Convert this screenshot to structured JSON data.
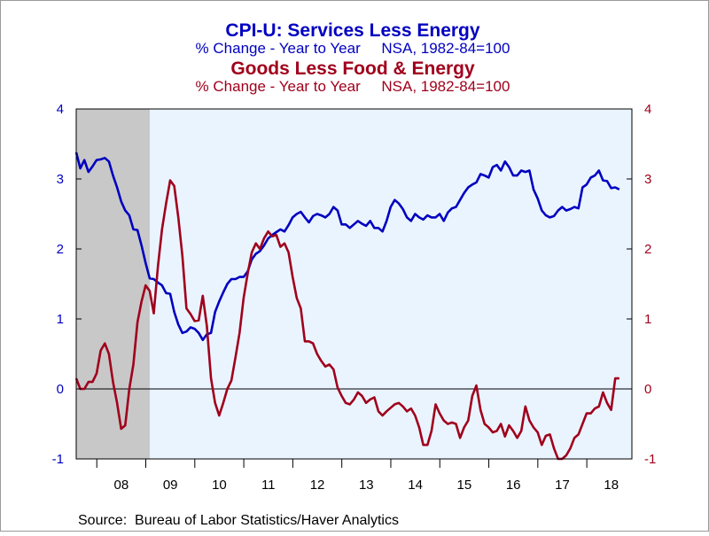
{
  "colors": {
    "series1": "#0000c0",
    "series2": "#a0001c",
    "plot_bg": "#eaf4ff",
    "recession": "#c8c8c8",
    "axis": "#000000"
  },
  "source": "Source:  Bureau of Labor Statistics/Haver Analytics",
  "chart_data": {
    "type": "line",
    "title": "CPI-U: Services Less Energy",
    "subtitle": "% Change - Year to Year     NSA, 1982-84=100",
    "title2": "Goods Less Food & Energy",
    "subtitle2": "% Change - Year to Year     NSA, 1982-84=100",
    "xlim": [
      2007.58,
      2018.92
    ],
    "ylim": [
      -1,
      4
    ],
    "y2lim": [
      -1,
      4
    ],
    "yticks": [
      "4",
      "3",
      "2",
      "1",
      "0",
      "-1"
    ],
    "y2ticks": [
      "4",
      "3",
      "2",
      "1",
      "0",
      "-1"
    ],
    "xticks": [
      "08",
      "09",
      "10",
      "11",
      "12",
      "13",
      "14",
      "15",
      "16",
      "17",
      "18"
    ],
    "zero_line": true,
    "shaded_regions": [
      {
        "start": 2007.58,
        "end": 2009.08
      }
    ],
    "series": [
      {
        "axis": "left",
        "start": 2007.58,
        "step": 0.0833333,
        "values": [
          3.38,
          3.15,
          3.27,
          3.1,
          3.18,
          3.27,
          3.28,
          3.3,
          3.25,
          3.05,
          2.88,
          2.68,
          2.55,
          2.48,
          2.28,
          2.27,
          2.05,
          1.8,
          1.58,
          1.57,
          1.52,
          1.48,
          1.37,
          1.36,
          1.1,
          0.92,
          0.8,
          0.82,
          0.88,
          0.86,
          0.8,
          0.7,
          0.78,
          0.8,
          1.1,
          1.25,
          1.38,
          1.5,
          1.57,
          1.57,
          1.6,
          1.6,
          1.68,
          1.85,
          1.93,
          1.97,
          2.05,
          2.15,
          2.2,
          2.24,
          2.28,
          2.25,
          2.34,
          2.45,
          2.5,
          2.53,
          2.45,
          2.38,
          2.47,
          2.5,
          2.48,
          2.45,
          2.5,
          2.6,
          2.55,
          2.35,
          2.35,
          2.3,
          2.35,
          2.4,
          2.36,
          2.33,
          2.4,
          2.3,
          2.3,
          2.25,
          2.4,
          2.6,
          2.7,
          2.65,
          2.57,
          2.45,
          2.4,
          2.5,
          2.45,
          2.42,
          2.48,
          2.45,
          2.45,
          2.5,
          2.4,
          2.52,
          2.58,
          2.6,
          2.7,
          2.8,
          2.88,
          2.92,
          2.95,
          3.07,
          3.05,
          3.02,
          3.17,
          3.2,
          3.12,
          3.25,
          3.17,
          3.05,
          3.05,
          3.12,
          3.1,
          3.12,
          2.85,
          2.72,
          2.55,
          2.48,
          2.45,
          2.47,
          2.55,
          2.6,
          2.55,
          2.57,
          2.6,
          2.58,
          2.88,
          2.92,
          3.02,
          3.05,
          3.12,
          2.98,
          2.97,
          2.87,
          2.88,
          2.85
        ]
      },
      {
        "axis": "right",
        "start": 2007.58,
        "step": 0.0833333,
        "values": [
          0.15,
          0.0,
          0.0,
          0.1,
          0.1,
          0.22,
          0.55,
          0.65,
          0.5,
          0.1,
          -0.2,
          -0.57,
          -0.52,
          0.0,
          0.35,
          0.95,
          1.25,
          1.48,
          1.4,
          1.08,
          1.75,
          2.28,
          2.65,
          2.98,
          2.9,
          2.45,
          1.9,
          1.15,
          1.07,
          0.97,
          0.98,
          1.33,
          0.9,
          0.15,
          -0.2,
          -0.38,
          -0.2,
          0.0,
          0.12,
          0.45,
          0.8,
          1.3,
          1.65,
          1.95,
          2.08,
          2.0,
          2.15,
          2.25,
          2.18,
          2.2,
          2.03,
          2.08,
          1.95,
          1.6,
          1.3,
          1.15,
          0.68,
          0.68,
          0.65,
          0.5,
          0.4,
          0.32,
          0.35,
          0.28,
          0.02,
          -0.1,
          -0.2,
          -0.22,
          -0.15,
          -0.05,
          -0.1,
          -0.2,
          -0.15,
          -0.12,
          -0.32,
          -0.38,
          -0.32,
          -0.27,
          -0.22,
          -0.2,
          -0.25,
          -0.32,
          -0.28,
          -0.38,
          -0.55,
          -0.8,
          -0.8,
          -0.6,
          -0.22,
          -0.35,
          -0.45,
          -0.5,
          -0.48,
          -0.5,
          -0.7,
          -0.55,
          -0.45,
          -0.1,
          0.05,
          -0.3,
          -0.5,
          -0.55,
          -0.62,
          -0.6,
          -0.5,
          -0.68,
          -0.52,
          -0.6,
          -0.7,
          -0.6,
          -0.25,
          -0.45,
          -0.55,
          -0.62,
          -0.8,
          -0.67,
          -0.65,
          -0.85,
          -1.0,
          -1.0,
          -0.95,
          -0.85,
          -0.7,
          -0.65,
          -0.5,
          -0.35,
          -0.35,
          -0.28,
          -0.25,
          -0.05,
          -0.2,
          -0.3,
          0.15,
          0.15
        ]
      }
    ]
  }
}
